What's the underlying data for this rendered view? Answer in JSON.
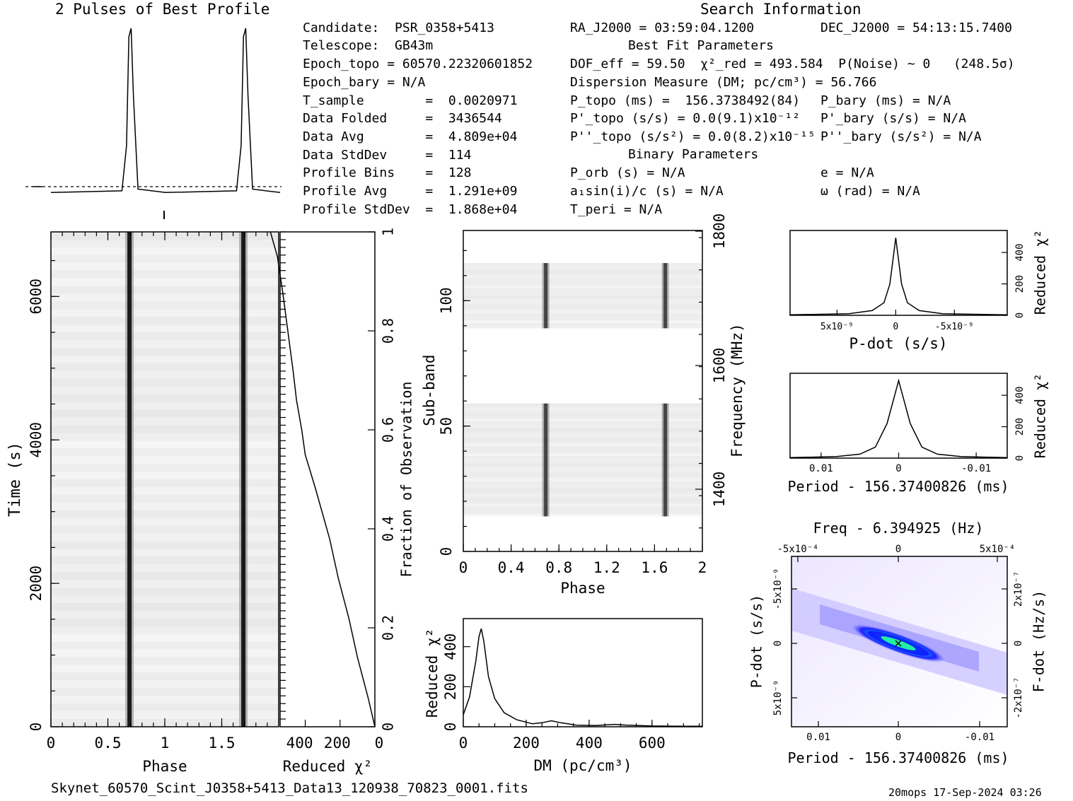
{
  "titles": {
    "profile": "2 Pulses of Best Profile",
    "search": "Search Information",
    "best_fit": "Best Fit Parameters",
    "binary": "Binary Parameters"
  },
  "info_left": [
    "Candidate:  PSR_0358+5413",
    "Telescope:  GB43m",
    "Epoch_topo = 60570.22320601852",
    "Epoch_bary = N/A",
    "T_sample        =  0.0020971",
    "Data Folded     =  3436544",
    "Data Avg        =  4.809e+04",
    "Data StdDev     =  114",
    "Profile Bins    =  128",
    "Profile Avg     =  1.291e+09",
    "Profile StdDev  =  1.868e+04"
  ],
  "info_mid": {
    "ra": "RA_J2000 = 03:59:04.1200",
    "dof": "DOF_eff = 59.50  χ²_red = 493.584  P(Noise) ~ 0   (248.5σ)",
    "dm": "Dispersion Measure (DM; pc/cm³) = 56.766",
    "ptopo": "P_topo (ms) =  156.3738492(84)",
    "pdot": "P'_topo (s/s) = 0.0(9.1)x10⁻¹²",
    "pddot": "P''_topo (s/s²) = 0.0(8.2)x10⁻¹⁵",
    "porb": "P_orb (s) = N/A",
    "a1": "a₁sin(i)/c (s) = N/A",
    "tperi": "T_peri = N/A"
  },
  "info_right": {
    "dec": "DEC_J2000 = 54:13:15.7400",
    "pbary": "P_bary (ms) = N/A",
    "pdbary": "P'_bary (s/s) = N/A",
    "pddbary": "P''_bary (s/s²) = N/A",
    "e": "e = N/A",
    "omega": "ω (rad) = N/A"
  },
  "footer": {
    "filename": "Skynet_60570_Scint_J0358+5413_Data13_120938_70823_0001.fits",
    "stamp": "20mops 17-Sep-2024 03:26"
  },
  "chart_data": [
    {
      "type": "line",
      "name": "profile",
      "title": "2 Pulses of Best Profile",
      "x": [
        0,
        0.62,
        0.66,
        0.68,
        0.7,
        0.72,
        0.76,
        1.0,
        1.62,
        1.66,
        1.68,
        1.7,
        1.72,
        1.76,
        2.0
      ],
      "y": [
        0.02,
        0.03,
        0.3,
        0.95,
        1.0,
        0.6,
        0.04,
        0.02,
        0.03,
        0.3,
        0.95,
        1.0,
        0.6,
        0.04,
        0.02
      ],
      "xlim": [
        0,
        2
      ]
    },
    {
      "type": "heatmap",
      "name": "time-phase",
      "xlabel": "Phase",
      "ylabel": "Time (s)",
      "xlim": [
        0,
        2
      ],
      "ylim": [
        0,
        6900
      ],
      "xticks": [
        "0",
        "0.5",
        "1",
        "1.5"
      ],
      "yticks": [
        "0",
        "2000",
        "4000",
        "6000"
      ],
      "pulse_phase": 0.69
    },
    {
      "type": "line",
      "name": "time-chi2",
      "xlabel": "Reduced χ²",
      "ylabel": "Fraction of Observation",
      "xticks": [
        "400",
        "200",
        "0"
      ],
      "yticks": [
        "0",
        "0.2",
        "0.4",
        "0.6",
        "0.8",
        "1"
      ],
      "x": [
        0,
        40,
        100,
        150,
        210,
        260,
        340,
        400,
        420,
        450,
        470,
        500,
        530,
        560,
        600
      ],
      "y": [
        0,
        0.06,
        0.14,
        0.22,
        0.3,
        0.38,
        0.48,
        0.55,
        0.6,
        0.66,
        0.72,
        0.8,
        0.88,
        0.95,
        1.0
      ]
    },
    {
      "type": "heatmap",
      "name": "subband-phase",
      "xlabel": "Phase",
      "ylabel": "Sub-band",
      "y2label": "Frequency (MHz)",
      "xlim": [
        0,
        2
      ],
      "ylim": [
        0,
        128
      ],
      "xticks": [
        "0",
        "0.4",
        "0.8",
        "1.2",
        "1.6",
        "2"
      ],
      "yticks": [
        "0",
        "50",
        "100"
      ],
      "y2ticks": [
        "1400",
        "1600",
        "1800"
      ],
      "active_bands": [
        [
          14,
          59
        ],
        [
          89,
          115
        ]
      ],
      "pulse_phase": 0.69
    },
    {
      "type": "line",
      "name": "dm-chi2",
      "xlabel": "DM (pc/cm³)",
      "ylabel": "Reduced χ²",
      "xlim": [
        0,
        760
      ],
      "ylim": [
        0,
        540
      ],
      "xticks": [
        "0",
        "200",
        "400",
        "600"
      ],
      "yticks": [
        "0",
        "200",
        "400"
      ],
      "x": [
        0,
        20,
        40,
        50,
        57,
        65,
        80,
        100,
        130,
        170,
        220,
        250,
        280,
        310,
        360,
        420,
        480,
        520,
        600,
        700,
        760
      ],
      "y": [
        60,
        150,
        330,
        450,
        490,
        430,
        250,
        140,
        70,
        35,
        15,
        20,
        30,
        20,
        8,
        6,
        12,
        8,
        4,
        3,
        3
      ]
    },
    {
      "type": "line",
      "name": "pdot-chi2",
      "xlabel": "P-dot (s/s)",
      "ylabel": "Reduced χ²",
      "xlim": [
        9e-09,
        -9.5e-09
      ],
      "ylim": [
        0,
        540
      ],
      "xticks": [
        "5x10⁻⁹",
        "0",
        "-5x10⁻⁹"
      ],
      "yticks": [
        "0",
        "200",
        "400"
      ],
      "x": [
        9e-09,
        4e-09,
        2e-09,
        1e-09,
        5e-10,
        0,
        -5e-10,
        -1e-09,
        -2e-09,
        -4e-09,
        -9.5e-09
      ],
      "y": [
        3,
        10,
        30,
        80,
        200,
        493,
        200,
        80,
        30,
        10,
        3
      ]
    },
    {
      "type": "line",
      "name": "period-chi2",
      "xlabel": "Period - 156.37400826 (ms)",
      "ylabel": "Reduced χ²",
      "xlim": [
        0.014,
        -0.014
      ],
      "ylim": [
        0,
        540
      ],
      "xticks": [
        "0.01",
        "0",
        "-0.01"
      ],
      "yticks": [
        "0",
        "200",
        "400"
      ],
      "x": [
        0.014,
        0.008,
        0.005,
        0.003,
        0.0015,
        0,
        -0.0015,
        -0.003,
        -0.005,
        -0.008,
        -0.014
      ],
      "y": [
        3,
        10,
        25,
        70,
        220,
        493,
        220,
        70,
        25,
        10,
        3
      ]
    },
    {
      "type": "heatmap",
      "name": "period-pdot",
      "title": "Freq - 6.394925 (Hz)",
      "xlabel": "Period - 156.37400826 (ms)",
      "ylabel": "P-dot (s/s)",
      "x2label": "Freq - 6.394925 (Hz)",
      "y2label": "F-dot (Hz/s)",
      "xticks": [
        "0.01",
        "0",
        "-0.01"
      ],
      "yticks": [
        "-5x10⁻⁹",
        "0",
        "5x10⁻⁹"
      ],
      "x2ticks": [
        "-5x10⁻⁴",
        "0",
        "5x10⁻⁴"
      ],
      "y2ticks": [
        "2x10⁻⁷",
        "0",
        "-2x10⁻⁷"
      ],
      "peak": [
        0,
        0
      ]
    }
  ]
}
